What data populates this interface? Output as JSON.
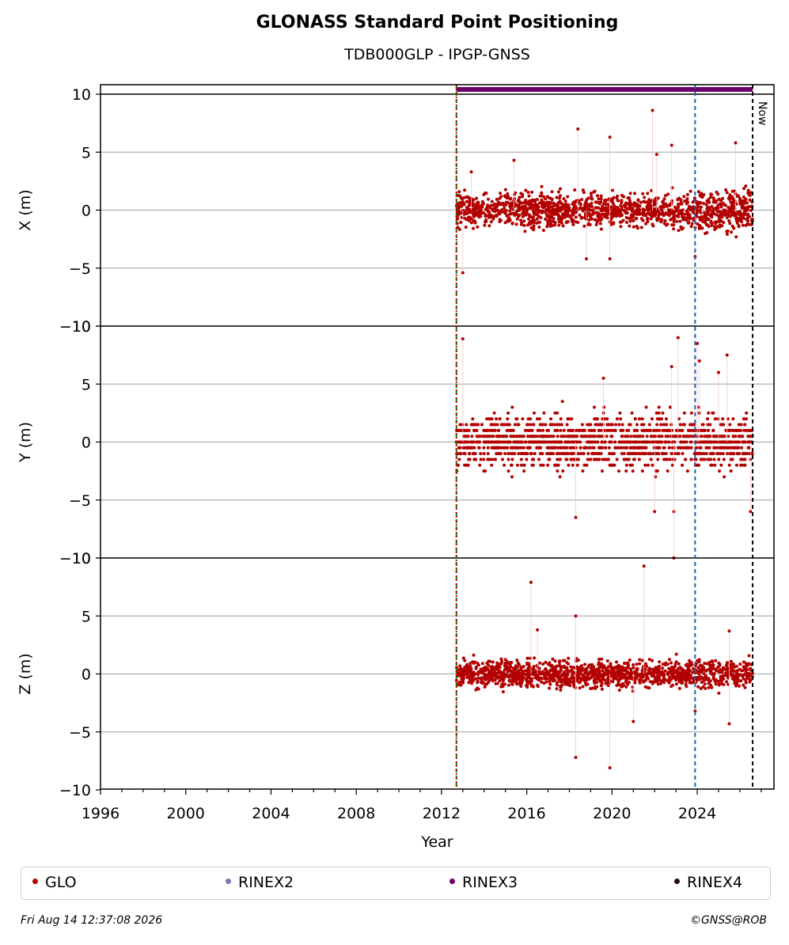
{
  "title": "GLONASS Standard Point Positioning",
  "subtitle": "TDB000GLP - IPGP-GNSS",
  "footer": {
    "timestamp": "Fri Aug 14 12:37:08 2026",
    "copyright": "©GNSS@ROB"
  },
  "legend": [
    {
      "label": "GLO",
      "color": "#b30000"
    },
    {
      "label": "RINEX2",
      "color": "#7a77b8"
    },
    {
      "label": "RINEX3",
      "color": "#6a006a"
    },
    {
      "label": "RINEX4",
      "color": "#2a0a1e"
    }
  ],
  "chart_data": {
    "type": "scatter",
    "xlabel": "Year",
    "xlim": [
      1996,
      2027.6
    ],
    "x_ticks": [
      1996,
      2000,
      2004,
      2008,
      2012,
      2016,
      2020,
      2024
    ],
    "y_ticks": [
      -10,
      -5,
      0,
      5,
      10
    ],
    "grid": "horizontal",
    "legend_position": "bottom",
    "panels": [
      {
        "ylabel": "X (m)",
        "ylim": [
          -10,
          10
        ],
        "spread": 1.0,
        "jump_spread": 1.3
      },
      {
        "ylabel": "Y (m)",
        "ylim": [
          -10,
          10
        ],
        "spread": 1.6,
        "jump_spread": 1.6
      },
      {
        "ylabel": "Z (m)",
        "ylim": [
          -10,
          10
        ],
        "spread": 0.8,
        "jump_spread": 1.0
      }
    ],
    "series": [
      {
        "name": "GLO",
        "color": "#b30000",
        "x_start": 2012.7,
        "x_end": 2026.6
      }
    ],
    "markers": [
      {
        "x": 2012.7,
        "color": "#008000",
        "style": "dashed"
      },
      {
        "x": 2012.7,
        "color": "#cc0000",
        "style": "dotted"
      },
      {
        "x": 2023.9,
        "color": "#1f5fa8",
        "style": "dashed"
      },
      {
        "x": 2026.6,
        "color": "#000000",
        "style": "dashed",
        "label": "Now"
      }
    ],
    "rinex_bar": {
      "x_start": 2012.7,
      "x_end": 2026.6,
      "color": "#6a006a"
    },
    "outliers": [
      {
        "panel": 0,
        "points": [
          [
            2013.0,
            -5.4
          ],
          [
            2018.4,
            7.0
          ],
          [
            2019.9,
            6.3
          ],
          [
            2021.9,
            8.6
          ],
          [
            2022.1,
            4.8
          ],
          [
            2022.8,
            5.6
          ],
          [
            2023.9,
            -4.0
          ],
          [
            2025.8,
            5.8
          ],
          [
            2015.4,
            4.3
          ],
          [
            2018.8,
            -4.2
          ],
          [
            2019.9,
            -4.2
          ],
          [
            2013.4,
            3.3
          ]
        ]
      },
      {
        "panel": 1,
        "points": [
          [
            2013.0,
            8.9
          ],
          [
            2018.3,
            -6.5
          ],
          [
            2019.6,
            5.5
          ],
          [
            2022.0,
            -6.0
          ],
          [
            2022.8,
            6.5
          ],
          [
            2022.9,
            -6.0
          ],
          [
            2023.1,
            9.0
          ],
          [
            2024.0,
            8.5
          ],
          [
            2024.1,
            7.0
          ],
          [
            2025.0,
            6.0
          ],
          [
            2025.4,
            7.5
          ],
          [
            2026.5,
            -6.0
          ],
          [
            2022.9,
            -10.0
          ]
        ]
      },
      {
        "panel": 2,
        "points": [
          [
            2016.2,
            7.9
          ],
          [
            2018.3,
            -7.2
          ],
          [
            2018.3,
            5.0
          ],
          [
            2016.5,
            3.8
          ],
          [
            2019.9,
            -8.1
          ],
          [
            2021.0,
            -4.1
          ],
          [
            2021.5,
            9.3
          ],
          [
            2025.5,
            3.7
          ],
          [
            2025.5,
            -4.3
          ],
          [
            2023.9,
            -3.2
          ]
        ]
      }
    ]
  }
}
